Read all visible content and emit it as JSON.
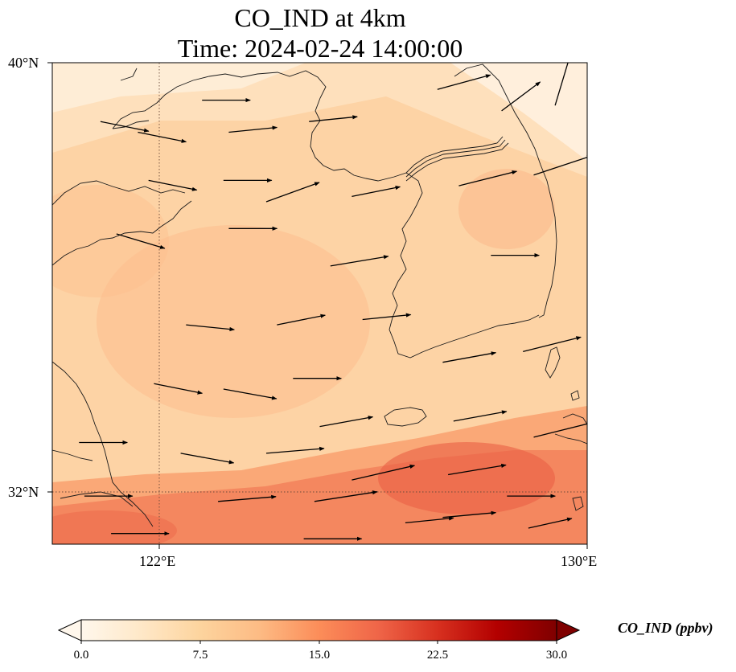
{
  "title": {
    "line1": "CO_IND at 4km",
    "line2": "Time: 2024-02-24 14:00:00"
  },
  "axes": {
    "lat_labels": [
      "40°N",
      "32°N"
    ],
    "lon_labels": [
      "122°E",
      "130°E"
    ],
    "lon_range": [
      120,
      130
    ],
    "lat_range": [
      31,
      40
    ],
    "gridlines": {
      "lons": [
        122
      ],
      "lats": [
        32
      ],
      "style": "dotted"
    }
  },
  "colorbar": {
    "label": "CO_IND (ppbv)",
    "ticks": [
      "0.0",
      "7.5",
      "15.0",
      "22.5",
      "30.0"
    ],
    "range": [
      0,
      30
    ],
    "extend": "both",
    "colormap": "OrRd",
    "stops": [
      "#fff7ec",
      "#fee8c8",
      "#fdd49e",
      "#fdbb84",
      "#fc8d59",
      "#ef6548",
      "#d7301f",
      "#b30000",
      "#7f0000"
    ]
  },
  "field": {
    "variable": "CO_IND",
    "units": "ppbv",
    "value_range_shown": [
      3,
      16
    ],
    "note": "lighter (~3-6 ppbv) in north/northeast, ~10 ppbv over Yellow Sea, ~14-16 ppbv band in south"
  },
  "wind": {
    "description": "wind vectors predominantly westerly/west-southwesterly, stronger in the south",
    "prevailing_direction": "W to E",
    "vectors": [
      {
        "lon": 120.9,
        "lat": 38.9,
        "u": 1.0,
        "v": -0.2
      },
      {
        "lon": 121.6,
        "lat": 38.7,
        "u": 1.0,
        "v": -0.2
      },
      {
        "lon": 122.8,
        "lat": 39.3,
        "u": 1.0,
        "v": 0.0
      },
      {
        "lon": 123.3,
        "lat": 38.7,
        "u": 1.0,
        "v": 0.1
      },
      {
        "lon": 124.8,
        "lat": 38.9,
        "u": 1.0,
        "v": 0.1
      },
      {
        "lon": 127.2,
        "lat": 39.5,
        "u": 1.1,
        "v": 0.3
      },
      {
        "lon": 128.4,
        "lat": 39.1,
        "u": 0.8,
        "v": 0.6
      },
      {
        "lon": 129.4,
        "lat": 39.2,
        "u": 0.3,
        "v": 1.0
      },
      {
        "lon": 121.8,
        "lat": 37.8,
        "u": 1.0,
        "v": -0.2
      },
      {
        "lon": 123.2,
        "lat": 37.8,
        "u": 1.0,
        "v": 0.0
      },
      {
        "lon": 124.0,
        "lat": 37.4,
        "u": 1.1,
        "v": 0.4
      },
      {
        "lon": 125.6,
        "lat": 37.5,
        "u": 1.0,
        "v": 0.2
      },
      {
        "lon": 127.6,
        "lat": 37.7,
        "u": 1.2,
        "v": 0.3
      },
      {
        "lon": 129.0,
        "lat": 37.9,
        "u": 1.2,
        "v": 0.4
      },
      {
        "lon": 121.2,
        "lat": 36.8,
        "u": 1.0,
        "v": -0.3
      },
      {
        "lon": 123.3,
        "lat": 36.9,
        "u": 1.0,
        "v": 0.0
      },
      {
        "lon": 125.2,
        "lat": 36.2,
        "u": 1.2,
        "v": 0.2
      },
      {
        "lon": 128.2,
        "lat": 36.4,
        "u": 1.0,
        "v": 0.0
      },
      {
        "lon": 122.5,
        "lat": 35.1,
        "u": 1.0,
        "v": -0.1
      },
      {
        "lon": 124.2,
        "lat": 35.1,
        "u": 1.0,
        "v": 0.2
      },
      {
        "lon": 125.8,
        "lat": 35.2,
        "u": 1.0,
        "v": 0.1
      },
      {
        "lon": 127.3,
        "lat": 34.4,
        "u": 1.1,
        "v": 0.2
      },
      {
        "lon": 128.8,
        "lat": 34.6,
        "u": 1.2,
        "v": 0.3
      },
      {
        "lon": 121.9,
        "lat": 34.0,
        "u": 1.0,
        "v": -0.2
      },
      {
        "lon": 123.2,
        "lat": 33.9,
        "u": 1.1,
        "v": -0.2
      },
      {
        "lon": 124.5,
        "lat": 34.1,
        "u": 1.0,
        "v": 0.0
      },
      {
        "lon": 125.0,
        "lat": 33.2,
        "u": 1.1,
        "v": 0.2
      },
      {
        "lon": 127.5,
        "lat": 33.3,
        "u": 1.1,
        "v": 0.2
      },
      {
        "lon": 129.0,
        "lat": 33.0,
        "u": 1.2,
        "v": 0.3
      },
      {
        "lon": 120.5,
        "lat": 32.9,
        "u": 1.0,
        "v": 0.0
      },
      {
        "lon": 122.4,
        "lat": 32.7,
        "u": 1.1,
        "v": -0.2
      },
      {
        "lon": 124.0,
        "lat": 32.7,
        "u": 1.2,
        "v": 0.1
      },
      {
        "lon": 125.6,
        "lat": 32.2,
        "u": 1.3,
        "v": 0.3
      },
      {
        "lon": 127.4,
        "lat": 32.3,
        "u": 1.2,
        "v": 0.2
      },
      {
        "lon": 120.6,
        "lat": 31.9,
        "u": 1.0,
        "v": 0.0
      },
      {
        "lon": 123.1,
        "lat": 31.8,
        "u": 1.2,
        "v": 0.1
      },
      {
        "lon": 124.9,
        "lat": 31.8,
        "u": 1.3,
        "v": 0.2
      },
      {
        "lon": 127.3,
        "lat": 31.5,
        "u": 1.1,
        "v": 0.1
      },
      {
        "lon": 128.5,
        "lat": 31.9,
        "u": 1.0,
        "v": 0.0
      },
      {
        "lon": 121.1,
        "lat": 31.2,
        "u": 1.2,
        "v": 0.0
      },
      {
        "lon": 124.7,
        "lat": 31.1,
        "u": 1.2,
        "v": 0.0
      },
      {
        "lon": 126.6,
        "lat": 31.4,
        "u": 1.0,
        "v": 0.1
      },
      {
        "lon": 128.9,
        "lat": 31.3,
        "u": 0.9,
        "v": 0.2
      }
    ]
  },
  "map_features": [
    "coastlines",
    "country borders",
    "Yellow Sea",
    "Korean Peninsula",
    "Liaodong Peninsula",
    "Shandong Peninsula",
    "Jeju Island"
  ]
}
